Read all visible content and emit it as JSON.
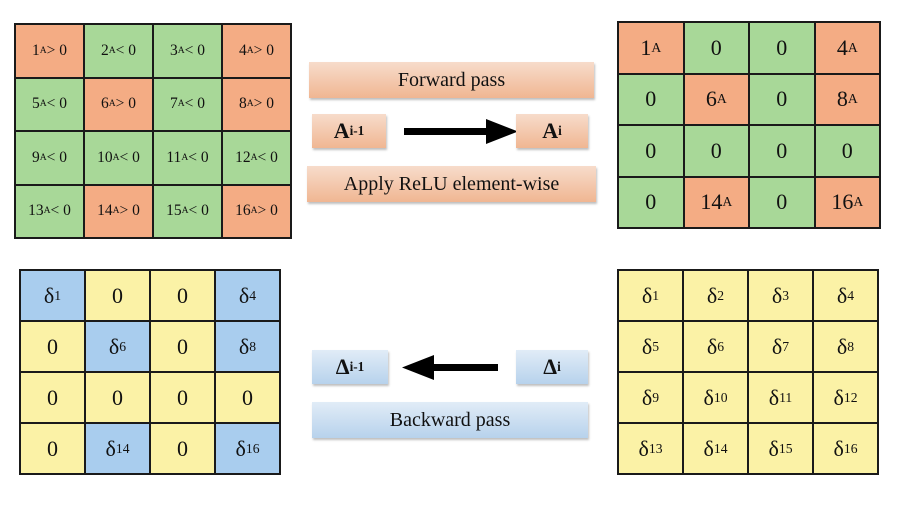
{
  "colors": {
    "orange": "#f4ac84",
    "green": "#a8d898",
    "blue": "#a9cdee",
    "yellow": "#fbf2a6",
    "border": "#1a1a1a"
  },
  "forward": {
    "title": "Forward pass",
    "input_label": {
      "base": "A",
      "sub": "i-1"
    },
    "output_label": {
      "base": "A",
      "sub": "i"
    },
    "caption": "Apply ReLU element-wise"
  },
  "backward": {
    "title": "Backward pass",
    "input_label": {
      "base": "Δ",
      "sub": "i"
    },
    "output_label": {
      "base": "Δ",
      "sub": "i-1"
    }
  },
  "grid_top_left": [
    {
      "num": "1",
      "sub": "A",
      "op": "> 0",
      "color": "orange"
    },
    {
      "num": "2",
      "sub": "A",
      "op": "< 0",
      "color": "green"
    },
    {
      "num": "3",
      "sub": "A",
      "op": "< 0",
      "color": "green"
    },
    {
      "num": "4",
      "sub": "A",
      "op": "> 0",
      "color": "orange"
    },
    {
      "num": "5",
      "sub": "A",
      "op": "< 0",
      "color": "green"
    },
    {
      "num": "6",
      "sub": "A",
      "op": "> 0",
      "color": "orange"
    },
    {
      "num": "7",
      "sub": "A",
      "op": "< 0",
      "color": "green"
    },
    {
      "num": "8",
      "sub": "A",
      "op": "> 0",
      "color": "orange"
    },
    {
      "num": "9",
      "sub": "A",
      "op": "< 0",
      "color": "green"
    },
    {
      "num": "10",
      "sub": "A",
      "op": "< 0",
      "color": "green"
    },
    {
      "num": "11",
      "sub": "A",
      "op": "< 0",
      "color": "green"
    },
    {
      "num": "12",
      "sub": "A",
      "op": "< 0",
      "color": "green"
    },
    {
      "num": "13",
      "sub": "A",
      "op": "< 0",
      "color": "green"
    },
    {
      "num": "14",
      "sub": "A",
      "op": "> 0",
      "color": "orange"
    },
    {
      "num": "15",
      "sub": "A",
      "op": "< 0",
      "color": "green"
    },
    {
      "num": "16",
      "sub": "A",
      "op": "> 0",
      "color": "orange"
    }
  ],
  "grid_top_right": [
    {
      "base": "1",
      "sub": "A",
      "color": "orange"
    },
    {
      "base": "0",
      "sub": "",
      "color": "green"
    },
    {
      "base": "0",
      "sub": "",
      "color": "green"
    },
    {
      "base": "4",
      "sub": "A",
      "color": "orange"
    },
    {
      "base": "0",
      "sub": "",
      "color": "green"
    },
    {
      "base": "6",
      "sub": "A",
      "color": "orange"
    },
    {
      "base": "0",
      "sub": "",
      "color": "green"
    },
    {
      "base": "8",
      "sub": "A",
      "color": "orange"
    },
    {
      "base": "0",
      "sub": "",
      "color": "green"
    },
    {
      "base": "0",
      "sub": "",
      "color": "green"
    },
    {
      "base": "0",
      "sub": "",
      "color": "green"
    },
    {
      "base": "0",
      "sub": "",
      "color": "green"
    },
    {
      "base": "0",
      "sub": "",
      "color": "green"
    },
    {
      "base": "14",
      "sub": "A",
      "color": "orange"
    },
    {
      "base": "0",
      "sub": "",
      "color": "green"
    },
    {
      "base": "16",
      "sub": "A",
      "color": "orange"
    }
  ],
  "grid_bottom_left": [
    {
      "base": "δ",
      "sub": "1",
      "color": "blue"
    },
    {
      "base": "0",
      "sub": "",
      "color": "yellow"
    },
    {
      "base": "0",
      "sub": "",
      "color": "yellow"
    },
    {
      "base": "δ",
      "sub": "4",
      "color": "blue"
    },
    {
      "base": "0",
      "sub": "",
      "color": "yellow"
    },
    {
      "base": "δ",
      "sub": "6",
      "color": "blue"
    },
    {
      "base": "0",
      "sub": "",
      "color": "yellow"
    },
    {
      "base": "δ",
      "sub": "8",
      "color": "blue"
    },
    {
      "base": "0",
      "sub": "",
      "color": "yellow"
    },
    {
      "base": "0",
      "sub": "",
      "color": "yellow"
    },
    {
      "base": "0",
      "sub": "",
      "color": "yellow"
    },
    {
      "base": "0",
      "sub": "",
      "color": "yellow"
    },
    {
      "base": "0",
      "sub": "",
      "color": "yellow"
    },
    {
      "base": "δ",
      "sub": "14",
      "color": "blue"
    },
    {
      "base": "0",
      "sub": "",
      "color": "yellow"
    },
    {
      "base": "δ",
      "sub": "16",
      "color": "blue"
    }
  ],
  "grid_bottom_right": [
    {
      "base": "δ",
      "sub": "1",
      "color": "yellow"
    },
    {
      "base": "δ",
      "sub": "2",
      "color": "yellow"
    },
    {
      "base": "δ",
      "sub": "3",
      "color": "yellow"
    },
    {
      "base": "δ",
      "sub": "4",
      "color": "yellow"
    },
    {
      "base": "δ",
      "sub": "5",
      "color": "yellow"
    },
    {
      "base": "δ",
      "sub": "6",
      "color": "yellow"
    },
    {
      "base": "δ",
      "sub": "7",
      "color": "yellow"
    },
    {
      "base": "δ",
      "sub": "8",
      "color": "yellow"
    },
    {
      "base": "δ",
      "sub": "9",
      "color": "yellow"
    },
    {
      "base": "δ",
      "sub": "10",
      "color": "yellow"
    },
    {
      "base": "δ",
      "sub": "11",
      "color": "yellow"
    },
    {
      "base": "δ",
      "sub": "12",
      "color": "yellow"
    },
    {
      "base": "δ",
      "sub": "13",
      "color": "yellow"
    },
    {
      "base": "δ",
      "sub": "14",
      "color": "yellow"
    },
    {
      "base": "δ",
      "sub": "15",
      "color": "yellow"
    },
    {
      "base": "δ",
      "sub": "16",
      "color": "yellow"
    }
  ]
}
